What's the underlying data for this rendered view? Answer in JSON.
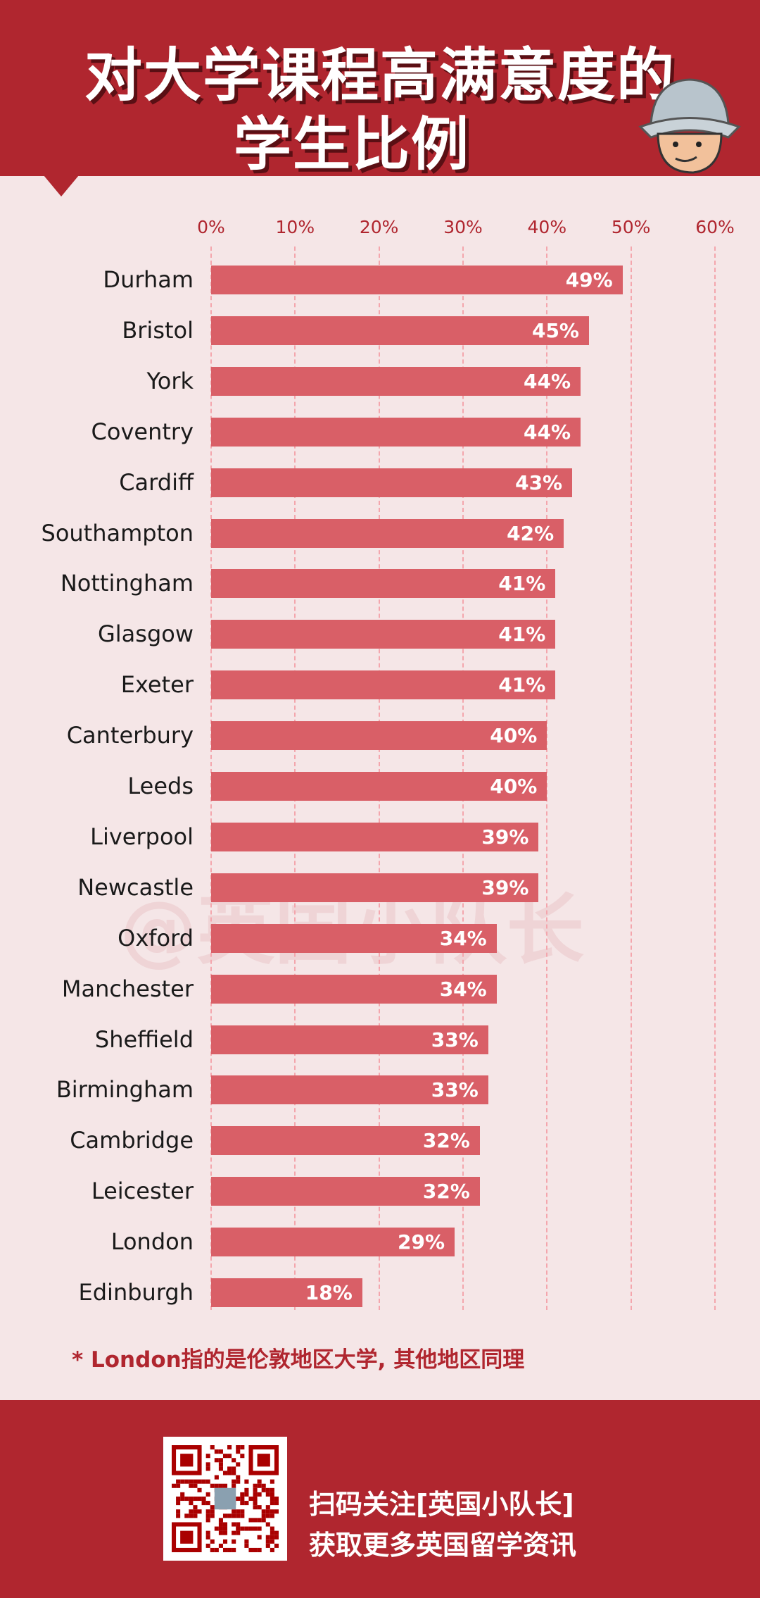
{
  "header": {
    "title_line1": "对大学课程高满意度的",
    "title_line2": "学生比例"
  },
  "watermark": "@英国小队长",
  "chart_data": {
    "type": "bar",
    "orientation": "horizontal",
    "title": "对大学课程高满意度的学生比例",
    "categories": [
      "Durham",
      "Bristol",
      "York",
      "Coventry",
      "Cardiff",
      "Southampton",
      "Nottingham",
      "Glasgow",
      "Exeter",
      "Canterbury",
      "Leeds",
      "Liverpool",
      "Newcastle",
      "Oxford",
      "Manchester",
      "Sheffield",
      "Birmingham",
      "Cambridge",
      "Leicester",
      "London",
      "Edinburgh"
    ],
    "values": [
      49,
      45,
      44,
      44,
      43,
      42,
      41,
      41,
      41,
      40,
      40,
      39,
      39,
      34,
      34,
      33,
      33,
      32,
      32,
      29,
      18
    ],
    "value_labels": [
      "49%",
      "45%",
      "44%",
      "44%",
      "43%",
      "42%",
      "41%",
      "41%",
      "41%",
      "40%",
      "40%",
      "39%",
      "39%",
      "34%",
      "34%",
      "33%",
      "33%",
      "32%",
      "32%",
      "29%",
      "18%"
    ],
    "xlim": [
      0,
      60
    ],
    "xticks": [
      "0%",
      "10%",
      "20%",
      "30%",
      "40%",
      "50%",
      "60%"
    ],
    "grid": true,
    "colors": {
      "bar": "#d95f67",
      "accent": "#b0262f"
    }
  },
  "note": "* London指的是伦敦地区大学, 其他地区同理",
  "footer": {
    "line1": "扫码关注[英国小队长]",
    "line2": "获取更多英国留学资讯"
  }
}
